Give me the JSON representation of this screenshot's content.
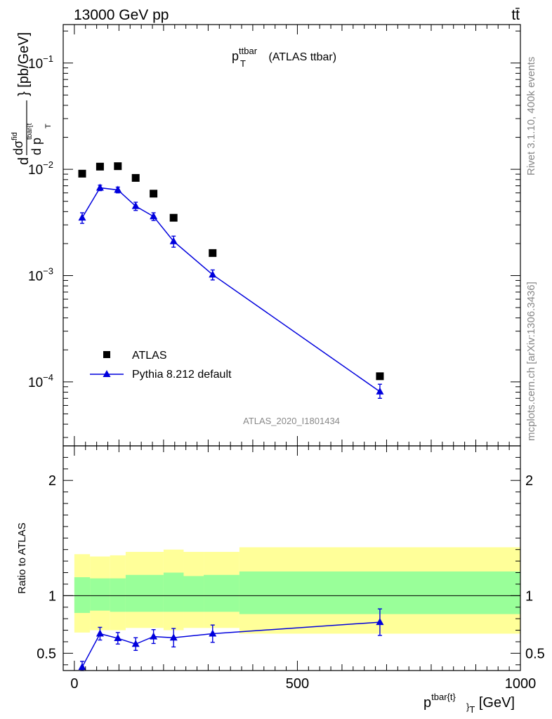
{
  "header": {
    "energy": "13000 GeV pp",
    "process": "tt̄"
  },
  "side_labels": {
    "rivet": "Rivet 3.1.10,  400k events",
    "source": "mcplots.cern.ch [arXiv:1306.3436]"
  },
  "analysis_id": "ATLAS_2020_I1801434",
  "chart_data": [
    {
      "type": "scatter",
      "scale": "log",
      "title": {
        "main": "p",
        "sup": "ttbar",
        "sub": "T",
        "suffix": " (ATLAS ttbar)"
      },
      "ylabel": {
        "d1": "d",
        "dsig": "dσ",
        "fid": "fid",
        "sub": "tbar{t",
        "d2": "d p",
        "T": "T",
        "unit": "} [pb/GeV]"
      },
      "ylim": [
        2.5e-05,
        0.23
      ],
      "xlim": [
        -25,
        1000
      ],
      "yticks": [
        {
          "v": 0.1,
          "base": "10",
          "exp": "−1"
        },
        {
          "v": 0.01,
          "base": "10",
          "exp": "−2"
        },
        {
          "v": 0.001,
          "base": "10",
          "exp": "−3"
        },
        {
          "v": 0.0001,
          "base": "10",
          "exp": "−4"
        }
      ],
      "legend": {
        "position": "bottom-left",
        "entries": [
          "ATLAS",
          "Pythia 8.212 default"
        ]
      },
      "series": [
        {
          "name": "ATLAS",
          "marker": "square",
          "color": "#000000",
          "x": [
            17.5,
            57.5,
            97.5,
            137.5,
            177.5,
            222.5,
            310,
            685
          ],
          "y": [
            0.0091,
            0.0106,
            0.0107,
            0.0083,
            0.0059,
            0.0035,
            0.00163,
            0.000113
          ]
        },
        {
          "name": "Pythia 8.212 default",
          "marker": "triangle",
          "color": "#0000dd",
          "x": [
            17.5,
            57.5,
            97.5,
            137.5,
            177.5,
            222.5,
            310,
            685
          ],
          "y": [
            0.0035,
            0.0067,
            0.0064,
            0.0045,
            0.0036,
            0.0021,
            0.00102,
            8.1e-05
          ],
          "yerr_lo": [
            0.0004,
            0.0004,
            0.0004,
            0.0004,
            0.0003,
            0.00025,
            0.00011,
            1.1e-05
          ],
          "yerr_hi": [
            0.0004,
            0.0004,
            0.0004,
            0.0004,
            0.0003,
            0.00025,
            0.00011,
            1.4e-05
          ]
        }
      ]
    },
    {
      "type": "ratio",
      "ylabel": "Ratio to ATLAS",
      "ylim": [
        0.35,
        2.3
      ],
      "yticks": [
        0.5,
        1,
        2
      ],
      "ytick_labels": [
        "0.5",
        "1",
        "2"
      ],
      "xticks": [
        0,
        500,
        1000
      ],
      "xtick_labels": [
        "0",
        "500",
        "1000"
      ],
      "xlabel": {
        "p": "p",
        "sup": "tbar{t}",
        "sub": "}",
        "sub2": "T",
        "unit": " [GeV]"
      },
      "bands": {
        "edges": [
          0,
          35,
          80,
          115,
          160,
          200,
          245,
          290,
          370,
          1000
        ],
        "yellow_lo": [
          0.68,
          0.7,
          0.7,
          0.72,
          0.72,
          0.7,
          0.72,
          0.72,
          0.67
        ],
        "yellow_hi": [
          1.36,
          1.34,
          1.35,
          1.38,
          1.38,
          1.4,
          1.38,
          1.38,
          1.42
        ],
        "green_lo": [
          0.85,
          0.87,
          0.86,
          0.86,
          0.86,
          0.86,
          0.86,
          0.86,
          0.84
        ],
        "green_hi": [
          1.16,
          1.15,
          1.15,
          1.18,
          1.18,
          1.2,
          1.17,
          1.18,
          1.21
        ]
      },
      "ratio_series": {
        "name": "Pythia 8.212 default / ATLAS",
        "x": [
          17.5,
          57.5,
          97.5,
          137.5,
          177.5,
          222.5,
          310,
          685
        ],
        "y": [
          0.38,
          0.67,
          0.63,
          0.58,
          0.645,
          0.635,
          0.67,
          0.77
        ],
        "err": [
          0.05,
          0.055,
          0.05,
          0.055,
          0.06,
          0.08,
          0.075,
          0.115
        ]
      }
    }
  ]
}
